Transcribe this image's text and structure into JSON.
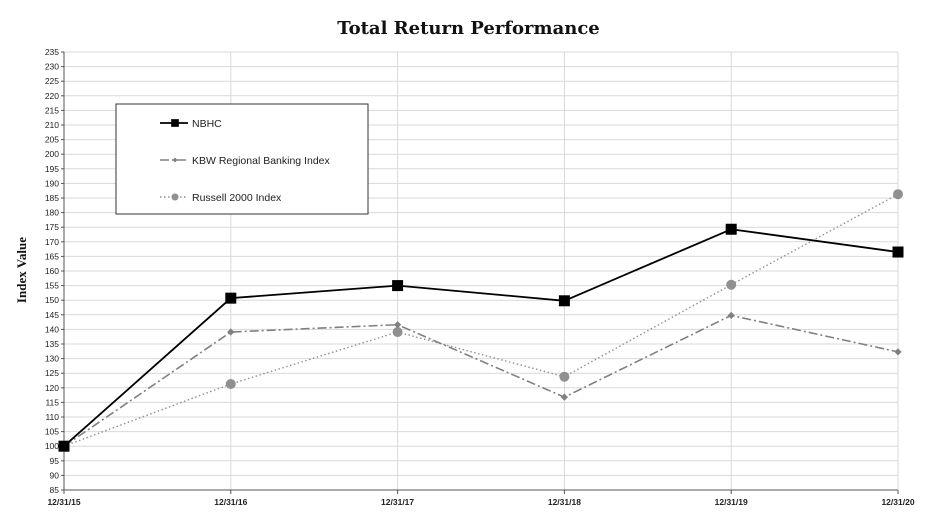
{
  "chart_data": {
    "type": "line",
    "title": "Total Return Performance",
    "xlabel": "",
    "ylabel": "Index Value",
    "categories": [
      "12/31/15",
      "12/31/16",
      "12/31/17",
      "12/31/18",
      "12/31/19",
      "12/31/20"
    ],
    "ylim": [
      85,
      235
    ],
    "ytick_step": 5,
    "grid": true,
    "legend_position": "top-left",
    "series": [
      {
        "name": "NBHC",
        "values": [
          100,
          150.7,
          155,
          149.8,
          174.3,
          166.5
        ],
        "color": "#000000",
        "marker": "square",
        "dash": "solid"
      },
      {
        "name": "KBW Regional Banking Index",
        "values": [
          100,
          139.1,
          141.6,
          116.8,
          144.8,
          132.3
        ],
        "color": "#808080",
        "marker": "diamond",
        "dash": "dashdot"
      },
      {
        "name": "Russell 2000 Index",
        "values": [
          100,
          121.3,
          139.1,
          123.8,
          155.3,
          186.3
        ],
        "color": "#909090",
        "marker": "circle",
        "dash": "dotted"
      }
    ]
  }
}
